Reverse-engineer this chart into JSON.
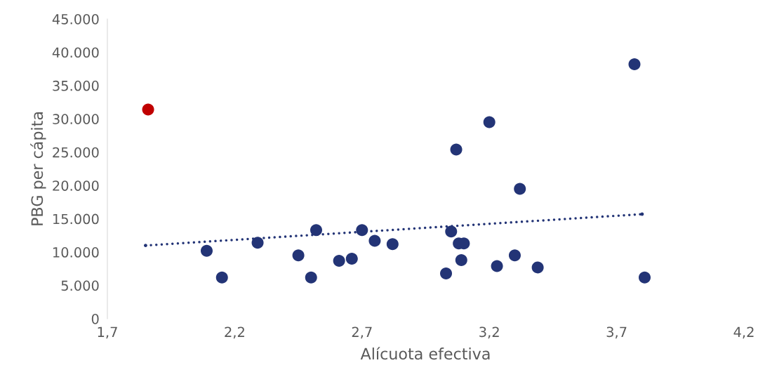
{
  "chart_data": {
    "type": "scatter",
    "xlabel": "Alícuota efectiva",
    "ylabel": "PBG per cápita",
    "xlim": [
      1.7,
      4.2
    ],
    "ylim": [
      0,
      45000
    ],
    "xticks": [
      {
        "value": 1.7,
        "label": "1,7"
      },
      {
        "value": 2.2,
        "label": "2,2"
      },
      {
        "value": 2.7,
        "label": "2,7"
      },
      {
        "value": 3.2,
        "label": "3,2"
      },
      {
        "value": 3.7,
        "label": "3,7"
      },
      {
        "value": 4.2,
        "label": "4,2"
      }
    ],
    "yticks": [
      0,
      {
        "value": 5000,
        "label": "5.000"
      },
      {
        "value": 10000,
        "label": "10.000"
      },
      {
        "value": 15000,
        "label": "15.000"
      },
      {
        "value": 20000,
        "label": "20.000"
      },
      {
        "value": 25000,
        "label": "25.000"
      },
      {
        "value": 30000,
        "label": "30.000"
      },
      {
        "value": 35000,
        "label": "35.000"
      },
      {
        "value": 40000,
        "label": "40.000"
      },
      {
        "value": 45000,
        "label": "45.000"
      }
    ],
    "grid": false,
    "legend": false,
    "marker": "circle",
    "series": [
      {
        "type": "line",
        "color": "#233476",
        "line_style": "dotted",
        "marker": "none",
        "x": [
          1.85,
          3.8
        ],
        "values": [
          11000,
          15700
        ]
      },
      {
        "color": "#233476",
        "x": [
          2.09,
          2.15,
          2.29,
          2.45,
          2.5,
          2.52,
          2.61,
          2.66,
          2.7,
          2.75,
          2.82,
          3.03,
          3.05,
          3.07,
          3.08,
          3.09,
          3.1,
          3.2,
          3.23,
          3.3,
          3.32,
          3.39,
          3.77,
          3.81
        ],
        "values": [
          10200,
          6200,
          11400,
          9500,
          6200,
          13300,
          8700,
          9000,
          13300,
          11700,
          11200,
          6800,
          13100,
          25400,
          11300,
          8800,
          11300,
          29500,
          7900,
          9500,
          19500,
          7700,
          38200,
          6200
        ]
      },
      {
        "color": "#c00000",
        "x": [
          1.86
        ],
        "values": [
          31400
        ]
      }
    ]
  }
}
